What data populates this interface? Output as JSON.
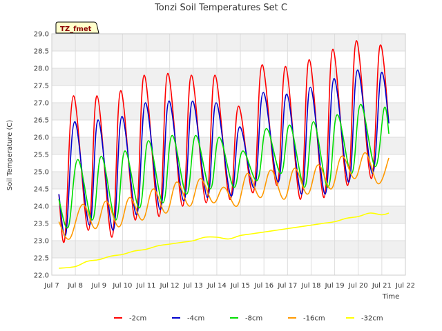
{
  "chart_data": {
    "type": "line",
    "title": "Tonzi Soil Temperatures Set C",
    "xlabel": "Time",
    "ylabel": "Soil Temperature (C)",
    "badge": "TZ_fmet",
    "xlim": [
      7.0,
      22.0
    ],
    "ylim": [
      22.0,
      29.0
    ],
    "x_ticks": [
      7,
      8,
      9,
      10,
      11,
      12,
      13,
      14,
      15,
      16,
      17,
      18,
      19,
      20,
      21,
      22
    ],
    "x_tick_labels": [
      "Jul 7",
      "Jul 8",
      "Jul 9",
      "Jul 10",
      "Jul 11",
      "Jul 12",
      "Jul 13",
      "Jul 14",
      "Jul 15",
      "Jul 16",
      "Jul 17",
      "Jul 18",
      "Jul 19",
      "Jul 20",
      "Jul 21",
      "Jul 22"
    ],
    "y_ticks": [
      22.0,
      22.5,
      23.0,
      23.5,
      24.0,
      24.5,
      25.0,
      25.5,
      26.0,
      26.5,
      27.0,
      27.5,
      28.0,
      28.5,
      29.0
    ],
    "y_tick_labels": [
      "22.0",
      "22.5",
      "23.0",
      "23.5",
      "24.0",
      "24.5",
      "25.0",
      "25.5",
      "26.0",
      "26.5",
      "27.0",
      "27.5",
      "28.0",
      "28.5",
      "29.0"
    ],
    "grid": true,
    "legend_position": "bottom",
    "series": [
      {
        "name": "-2cm",
        "color": "#ff0000",
        "x": [
          7.3,
          7.55,
          7.92,
          8.55,
          8.92,
          9.55,
          9.92,
          10.55,
          10.92,
          11.55,
          11.92,
          12.55,
          12.92,
          13.55,
          13.92,
          14.55,
          14.92,
          15.55,
          15.92,
          16.55,
          16.92,
          17.55,
          17.92,
          18.55,
          18.92,
          19.55,
          19.92,
          20.55,
          20.92,
          21.3
        ],
        "y": [
          24.35,
          23.05,
          27.2,
          23.3,
          27.2,
          23.1,
          27.35,
          23.6,
          27.8,
          23.7,
          27.85,
          24.0,
          27.8,
          24.1,
          27.8,
          24.2,
          26.9,
          24.4,
          28.1,
          24.6,
          28.05,
          24.2,
          28.25,
          24.25,
          28.55,
          24.6,
          28.8,
          24.8,
          28.65,
          26.4
        ]
      },
      {
        "name": "-4cm",
        "color": "#0000cc",
        "x": [
          7.3,
          7.6,
          7.97,
          8.6,
          8.97,
          9.6,
          9.97,
          10.6,
          10.97,
          11.6,
          11.97,
          12.6,
          12.97,
          13.6,
          13.97,
          14.6,
          14.97,
          15.6,
          15.97,
          16.6,
          16.97,
          17.6,
          17.97,
          18.6,
          18.97,
          19.6,
          19.97,
          20.6,
          20.97,
          21.3
        ],
        "y": [
          24.35,
          23.2,
          26.45,
          23.45,
          26.5,
          23.3,
          26.6,
          23.75,
          27.0,
          23.9,
          27.05,
          24.15,
          27.05,
          24.25,
          27.0,
          24.3,
          26.3,
          24.55,
          27.3,
          24.7,
          27.25,
          24.35,
          27.45,
          24.35,
          27.7,
          24.7,
          27.95,
          24.95,
          27.85,
          26.4
        ]
      },
      {
        "name": "-8cm",
        "color": "#00dd00",
        "x": [
          7.3,
          7.7,
          8.1,
          8.72,
          9.1,
          9.72,
          10.1,
          10.72,
          11.1,
          11.72,
          12.1,
          12.72,
          13.1,
          13.72,
          14.1,
          14.72,
          15.1,
          15.72,
          16.1,
          16.72,
          17.1,
          17.72,
          18.1,
          18.72,
          19.1,
          19.72,
          20.1,
          20.72,
          21.1,
          21.3
        ],
        "y": [
          24.2,
          23.4,
          25.35,
          23.6,
          25.45,
          23.6,
          25.6,
          23.95,
          25.9,
          24.1,
          26.05,
          24.35,
          26.05,
          24.5,
          26.0,
          24.55,
          25.6,
          24.75,
          26.25,
          24.95,
          26.35,
          24.55,
          26.45,
          24.55,
          26.65,
          24.95,
          26.95,
          25.15,
          26.85,
          26.1
        ]
      },
      {
        "name": "-16cm",
        "color": "#ff9900",
        "x": [
          7.3,
          7.75,
          8.3,
          8.85,
          9.3,
          9.85,
          10.3,
          10.85,
          11.3,
          11.85,
          12.3,
          12.85,
          13.3,
          13.85,
          14.3,
          14.85,
          15.3,
          15.85,
          16.3,
          16.85,
          17.3,
          17.85,
          18.3,
          18.85,
          19.3,
          19.85,
          20.3,
          20.85,
          21.3
        ],
        "y": [
          23.55,
          23.05,
          24.05,
          23.35,
          24.15,
          23.4,
          24.25,
          23.6,
          24.5,
          23.8,
          24.7,
          24.0,
          24.8,
          24.1,
          24.55,
          24.0,
          24.95,
          24.25,
          25.05,
          24.2,
          25.1,
          24.35,
          25.2,
          24.5,
          25.45,
          24.8,
          25.55,
          24.65,
          25.4
        ]
      },
      {
        "name": "-32cm",
        "color": "#ffff00",
        "x": [
          7.3,
          8.0,
          8.5,
          9.0,
          9.5,
          10.0,
          10.5,
          11.0,
          11.5,
          12.0,
          12.5,
          13.0,
          13.5,
          14.0,
          14.5,
          15.0,
          15.5,
          16.0,
          16.5,
          17.0,
          17.5,
          18.0,
          18.5,
          19.0,
          19.5,
          20.0,
          20.5,
          21.0,
          21.3
        ],
        "y": [
          22.2,
          22.25,
          22.4,
          22.45,
          22.55,
          22.6,
          22.7,
          22.75,
          22.85,
          22.9,
          22.95,
          23.0,
          23.1,
          23.1,
          23.05,
          23.15,
          23.2,
          23.25,
          23.3,
          23.35,
          23.4,
          23.45,
          23.5,
          23.55,
          23.65,
          23.7,
          23.8,
          23.75,
          23.8
        ]
      }
    ]
  }
}
